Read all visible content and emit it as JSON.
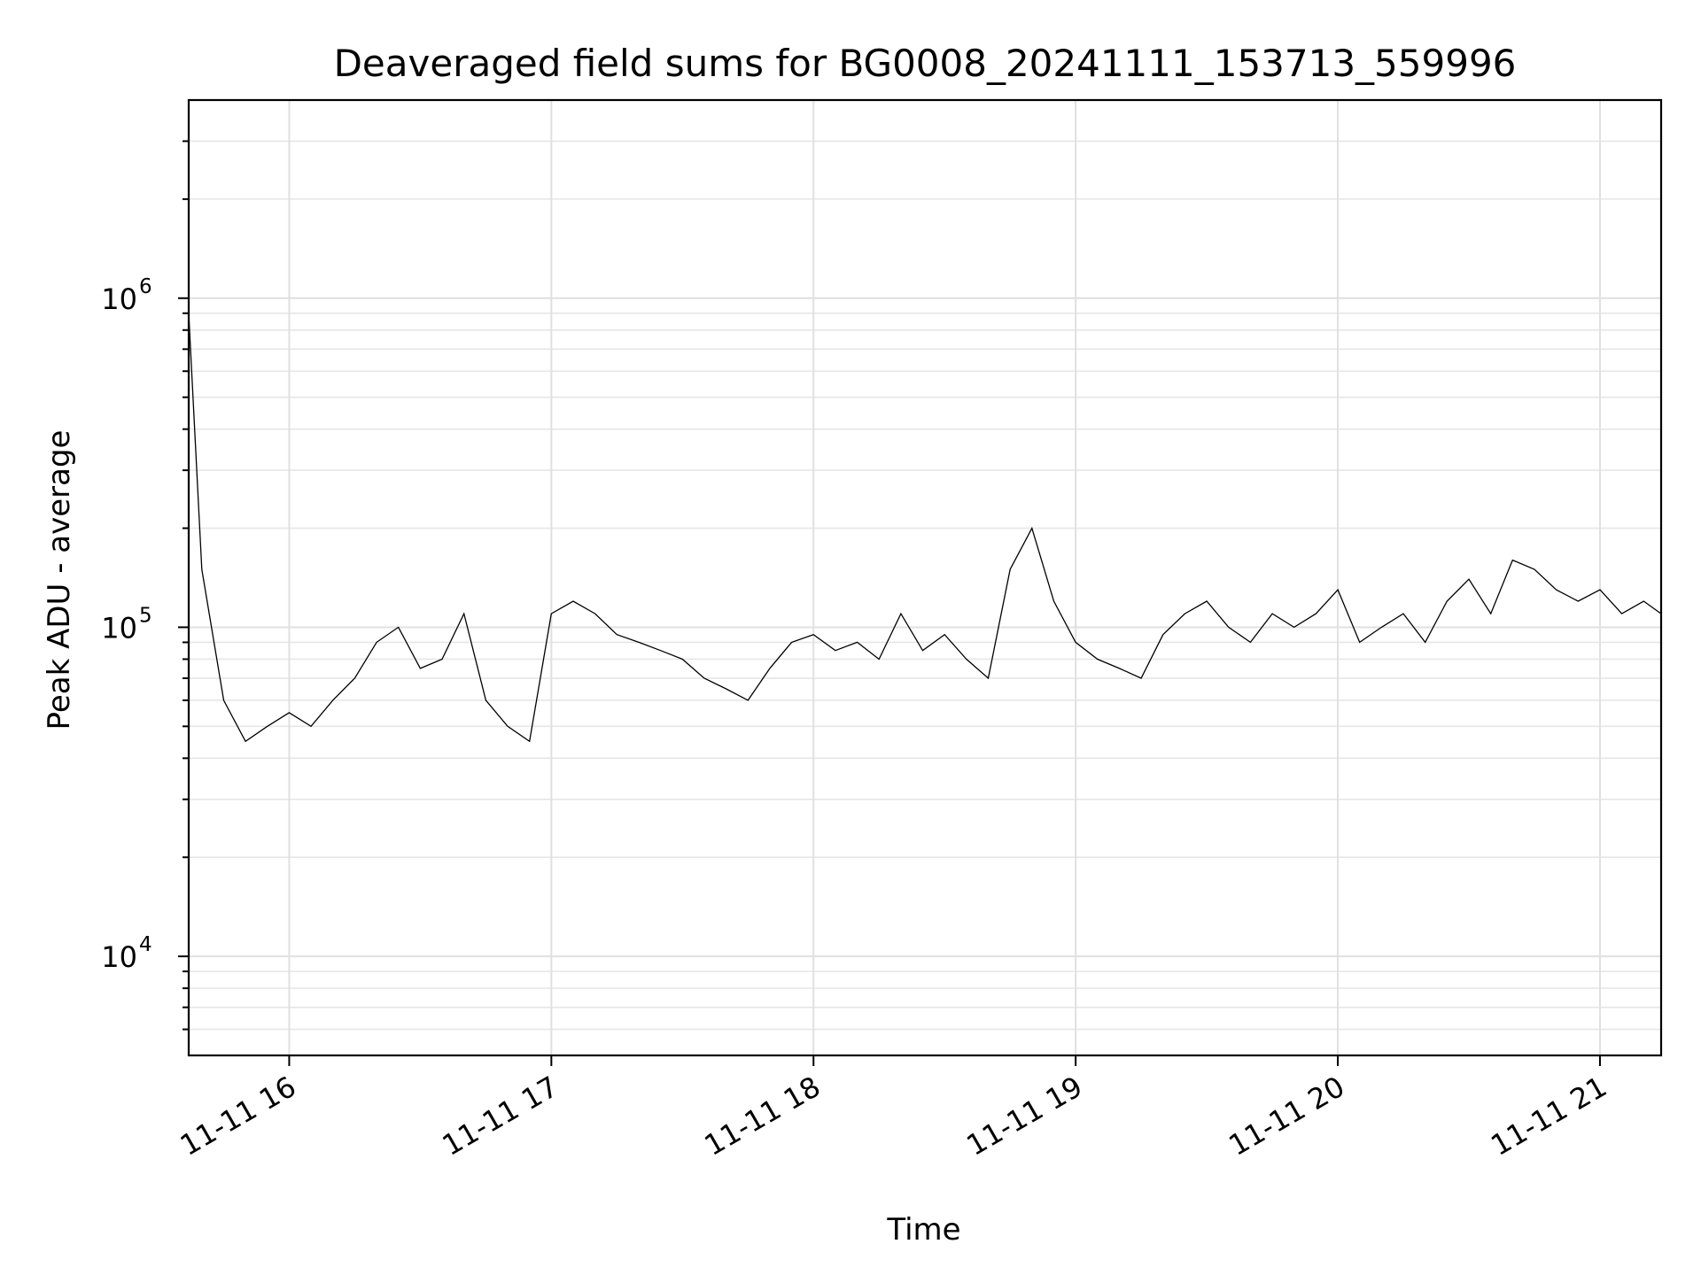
{
  "chart_data": {
    "type": "line",
    "title": "Deaveraged field sums for BG0008_20241111_153713_559996",
    "xlabel": "Time",
    "ylabel": "Peak ADU - average",
    "y_scale": "log",
    "grid": "on",
    "legend": "none",
    "line_color": "#000000",
    "xlim": [
      "2024-11-11 15:37",
      "2024-11-11 21:14"
    ],
    "ylim": [
      5000,
      4000000
    ],
    "x_ticks": [
      {
        "time": "2024-11-11 16:00",
        "label": "11-11 16"
      },
      {
        "time": "2024-11-11 17:00",
        "label": "11-11 17"
      },
      {
        "time": "2024-11-11 18:00",
        "label": "11-11 18"
      },
      {
        "time": "2024-11-11 19:00",
        "label": "11-11 19"
      },
      {
        "time": "2024-11-11 20:00",
        "label": "11-11 20"
      },
      {
        "time": "2024-11-11 21:00",
        "label": "11-11 21"
      }
    ],
    "y_ticks": [
      {
        "value": 10000,
        "base": "10",
        "exponent": "4"
      },
      {
        "value": 100000,
        "base": "10",
        "exponent": "5"
      },
      {
        "value": 1000000,
        "base": "10",
        "exponent": "6"
      }
    ],
    "series": [
      {
        "x": [
          "2024-11-11 15:37",
          "2024-11-11 15:40",
          "2024-11-11 15:45",
          "2024-11-11 15:50",
          "2024-11-11 15:55",
          "2024-11-11 16:00",
          "2024-11-11 16:05",
          "2024-11-11 16:10",
          "2024-11-11 16:15",
          "2024-11-11 16:20",
          "2024-11-11 16:25",
          "2024-11-11 16:30",
          "2024-11-11 16:35",
          "2024-11-11 16:40",
          "2024-11-11 16:45",
          "2024-11-11 16:50",
          "2024-11-11 16:55",
          "2024-11-11 17:00",
          "2024-11-11 17:05",
          "2024-11-11 17:10",
          "2024-11-11 17:15",
          "2024-11-11 17:20",
          "2024-11-11 17:25",
          "2024-11-11 17:30",
          "2024-11-11 17:35",
          "2024-11-11 17:40",
          "2024-11-11 17:45",
          "2024-11-11 17:50",
          "2024-11-11 17:55",
          "2024-11-11 18:00",
          "2024-11-11 18:05",
          "2024-11-11 18:10",
          "2024-11-11 18:15",
          "2024-11-11 18:20",
          "2024-11-11 18:25",
          "2024-11-11 18:30",
          "2024-11-11 18:35",
          "2024-11-11 18:40",
          "2024-11-11 18:45",
          "2024-11-11 18:50",
          "2024-11-11 18:55",
          "2024-11-11 19:00",
          "2024-11-11 19:05",
          "2024-11-11 19:10",
          "2024-11-11 19:15",
          "2024-11-11 19:20",
          "2024-11-11 19:25",
          "2024-11-11 19:30",
          "2024-11-11 19:35",
          "2024-11-11 19:40",
          "2024-11-11 19:45",
          "2024-11-11 19:50",
          "2024-11-11 19:55",
          "2024-11-11 20:00",
          "2024-11-11 20:05",
          "2024-11-11 20:10",
          "2024-11-11 20:15",
          "2024-11-11 20:20",
          "2024-11-11 20:25",
          "2024-11-11 20:30",
          "2024-11-11 20:35",
          "2024-11-11 20:40",
          "2024-11-11 20:45",
          "2024-11-11 20:50",
          "2024-11-11 20:55",
          "2024-11-11 21:00",
          "2024-11-11 21:05",
          "2024-11-11 21:10",
          "2024-11-11 21:14"
        ],
        "y": [
          900000,
          150000,
          60000,
          45000,
          50000,
          55000,
          50000,
          60000,
          70000,
          90000,
          100000,
          75000,
          80000,
          110000,
          60000,
          50000,
          45000,
          110000,
          120000,
          110000,
          95000,
          90000,
          85000,
          80000,
          70000,
          65000,
          60000,
          75000,
          90000,
          95000,
          85000,
          90000,
          80000,
          110000,
          85000,
          95000,
          80000,
          70000,
          150000,
          200000,
          120000,
          90000,
          80000,
          75000,
          70000,
          95000,
          110000,
          120000,
          100000,
          90000,
          110000,
          100000,
          110000,
          130000,
          90000,
          100000,
          110000,
          90000,
          120000,
          140000,
          110000,
          160000,
          150000,
          130000,
          120000,
          130000,
          110000,
          120000,
          110000
        ]
      }
    ]
  }
}
